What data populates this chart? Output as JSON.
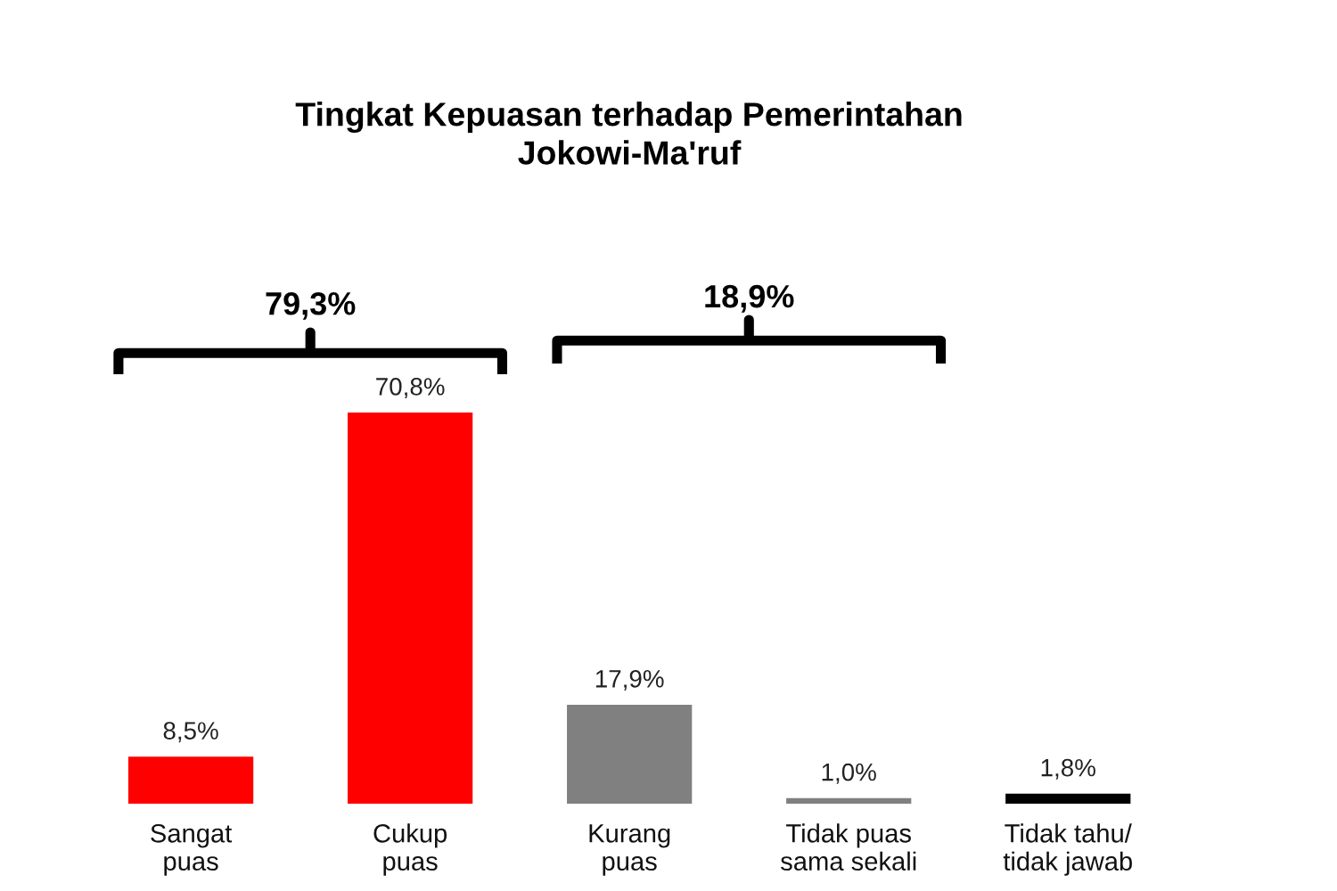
{
  "chart_data": {
    "type": "bar",
    "title": "Tingkat Kepuasan terhadap Pemerintahan\nJokowi-Ma'ruf",
    "categories": [
      "Sangat\npuas",
      "Cukup\npuas",
      "Kurang\npuas",
      "Tidak puas\nsama sekali",
      "Tidak tahu/\ntidak jawab"
    ],
    "values": [
      8.5,
      70.8,
      17.9,
      1.0,
      1.8
    ],
    "colors": [
      "#ff0000",
      "#ff0000",
      "#808080",
      "#808080",
      "#000000"
    ],
    "value_labels": [
      "8,5%",
      "70,8%",
      "17,9%",
      "1,0%",
      "1,8%"
    ],
    "annotations": [
      "79,3%",
      "18,9%"
    ],
    "tick_labels": "x"
  }
}
